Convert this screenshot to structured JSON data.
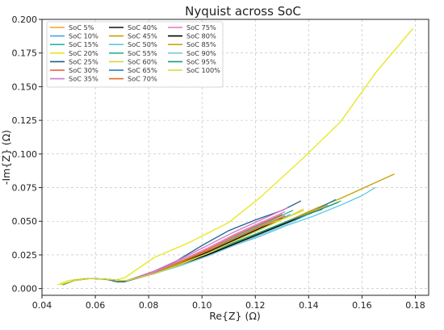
{
  "chart_data": {
    "type": "line",
    "title": "Nyquist across SoC",
    "xlabel": "Re{Z} (Ω)",
    "ylabel": "-Im{Z} (Ω)",
    "xlim": [
      0.04,
      0.185
    ],
    "ylim": [
      -0.005,
      0.2
    ],
    "xticks": [
      "0.04",
      "0.06",
      "0.08",
      "0.10",
      "0.12",
      "0.14",
      "0.16",
      "0.18"
    ],
    "yticks": [
      "0.000",
      "0.025",
      "0.050",
      "0.075",
      "0.100",
      "0.125",
      "0.150",
      "0.175",
      "0.200"
    ],
    "grid": true,
    "legend_position": "top-left",
    "legend_columns": 3,
    "series": [
      {
        "name": "SoC 5%",
        "color": "#f5a623",
        "x": [
          0.048,
          0.052,
          0.058,
          0.064,
          0.069,
          0.072,
          0.082,
          0.092,
          0.102,
          0.112,
          0.122,
          0.132
        ],
        "y": [
          0.003,
          0.006,
          0.0075,
          0.007,
          0.006,
          0.006,
          0.012,
          0.019,
          0.027,
          0.036,
          0.045,
          0.054
        ]
      },
      {
        "name": "SoC 10%",
        "color": "#4aa3df",
        "x": [
          0.048,
          0.052,
          0.058,
          0.064,
          0.069,
          0.072,
          0.082,
          0.092,
          0.102,
          0.112,
          0.122,
          0.133
        ],
        "y": [
          0.003,
          0.006,
          0.0075,
          0.007,
          0.006,
          0.006,
          0.011,
          0.018,
          0.026,
          0.035,
          0.044,
          0.055
        ]
      },
      {
        "name": "SoC 15%",
        "color": "#2bb5a0",
        "x": [
          0.048,
          0.052,
          0.058,
          0.064,
          0.069,
          0.072,
          0.082,
          0.092,
          0.102,
          0.112,
          0.122,
          0.134
        ],
        "y": [
          0.003,
          0.006,
          0.0075,
          0.007,
          0.006,
          0.006,
          0.012,
          0.019,
          0.028,
          0.038,
          0.047,
          0.058
        ]
      },
      {
        "name": "SoC 20%",
        "color": "#e6e619",
        "x": [
          0.046,
          0.05,
          0.056,
          0.062,
          0.067,
          0.071,
          0.082,
          0.095,
          0.11,
          0.122,
          0.138,
          0.152,
          0.165,
          0.179
        ],
        "y": [
          0.003,
          0.006,
          0.0075,
          0.007,
          0.006,
          0.008,
          0.023,
          0.034,
          0.049,
          0.068,
          0.097,
          0.124,
          0.16,
          0.193
        ]
      },
      {
        "name": "SoC 25%",
        "color": "#1f5f8b",
        "x": [
          0.048,
          0.052,
          0.058,
          0.064,
          0.068,
          0.071,
          0.08,
          0.09,
          0.1,
          0.11,
          0.12,
          0.13,
          0.137
        ],
        "y": [
          0.003,
          0.006,
          0.0075,
          0.007,
          0.005,
          0.005,
          0.01,
          0.02,
          0.032,
          0.043,
          0.051,
          0.058,
          0.065
        ]
      },
      {
        "name": "SoC 30%",
        "color": "#e8553a",
        "x": [
          0.048,
          0.052,
          0.058,
          0.064,
          0.069,
          0.072,
          0.082,
          0.092,
          0.102,
          0.112,
          0.122,
          0.13
        ],
        "y": [
          0.003,
          0.006,
          0.0075,
          0.007,
          0.006,
          0.006,
          0.012,
          0.02,
          0.029,
          0.039,
          0.048,
          0.055
        ]
      },
      {
        "name": "SoC 35%",
        "color": "#c77cc7",
        "x": [
          0.048,
          0.052,
          0.058,
          0.064,
          0.069,
          0.072,
          0.082,
          0.092,
          0.102,
          0.112,
          0.122,
          0.132
        ],
        "y": [
          0.003,
          0.006,
          0.0075,
          0.007,
          0.006,
          0.006,
          0.013,
          0.022,
          0.032,
          0.042,
          0.051,
          0.06
        ]
      },
      {
        "name": "SoC 40%",
        "color": "#111111",
        "x": [
          0.048,
          0.052,
          0.058,
          0.064,
          0.069,
          0.072,
          0.082,
          0.092,
          0.102,
          0.112,
          0.122,
          0.13
        ],
        "y": [
          0.003,
          0.006,
          0.0075,
          0.007,
          0.006,
          0.006,
          0.012,
          0.019,
          0.027,
          0.036,
          0.045,
          0.052
        ]
      },
      {
        "name": "SoC 45%",
        "color": "#c9a000",
        "x": [
          0.048,
          0.052,
          0.058,
          0.064,
          0.069,
          0.072,
          0.082,
          0.092,
          0.102,
          0.112,
          0.122,
          0.132,
          0.142,
          0.152,
          0.162,
          0.172
        ],
        "y": [
          0.003,
          0.006,
          0.0075,
          0.007,
          0.006,
          0.006,
          0.012,
          0.019,
          0.026,
          0.034,
          0.042,
          0.05,
          0.059,
          0.067,
          0.076,
          0.085
        ]
      },
      {
        "name": "SoC 50%",
        "color": "#5bc8e6",
        "x": [
          0.048,
          0.052,
          0.058,
          0.064,
          0.069,
          0.072,
          0.082,
          0.092,
          0.102,
          0.112,
          0.122,
          0.132,
          0.142,
          0.152,
          0.16,
          0.165
        ],
        "y": [
          0.003,
          0.006,
          0.0075,
          0.007,
          0.006,
          0.006,
          0.011,
          0.018,
          0.025,
          0.032,
          0.039,
          0.047,
          0.054,
          0.062,
          0.069,
          0.075
        ]
      },
      {
        "name": "SoC 55%",
        "color": "#2fb28a",
        "x": [
          0.048,
          0.052,
          0.058,
          0.064,
          0.069,
          0.072,
          0.082,
          0.092,
          0.102,
          0.112,
          0.122,
          0.132,
          0.142,
          0.152
        ],
        "y": [
          0.003,
          0.006,
          0.0075,
          0.007,
          0.006,
          0.006,
          0.011,
          0.018,
          0.025,
          0.033,
          0.041,
          0.049,
          0.057,
          0.065
        ]
      },
      {
        "name": "SoC 60%",
        "color": "#e0d23a",
        "x": [
          0.048,
          0.052,
          0.058,
          0.064,
          0.069,
          0.072,
          0.082,
          0.092,
          0.102,
          0.112,
          0.122,
          0.132,
          0.138
        ],
        "y": [
          0.003,
          0.006,
          0.0075,
          0.007,
          0.006,
          0.006,
          0.012,
          0.02,
          0.028,
          0.037,
          0.046,
          0.053,
          0.058
        ]
      },
      {
        "name": "SoC 65%",
        "color": "#1f77b4",
        "x": [
          0.048,
          0.052,
          0.058,
          0.064,
          0.069,
          0.072,
          0.082,
          0.092,
          0.102,
          0.112,
          0.122,
          0.132,
          0.142,
          0.15
        ],
        "y": [
          0.003,
          0.006,
          0.0075,
          0.007,
          0.006,
          0.006,
          0.011,
          0.018,
          0.025,
          0.033,
          0.041,
          0.05,
          0.058,
          0.066
        ]
      },
      {
        "name": "SoC 70%",
        "color": "#e36b1e",
        "x": [
          0.048,
          0.052,
          0.058,
          0.064,
          0.069,
          0.072,
          0.082,
          0.092,
          0.102,
          0.112,
          0.122,
          0.131
        ],
        "y": [
          0.003,
          0.006,
          0.0075,
          0.007,
          0.006,
          0.006,
          0.012,
          0.02,
          0.028,
          0.037,
          0.046,
          0.054
        ]
      },
      {
        "name": "SoC 75%",
        "color": "#e377c2",
        "x": [
          0.048,
          0.052,
          0.058,
          0.064,
          0.069,
          0.072,
          0.082,
          0.092,
          0.102,
          0.112,
          0.122,
          0.131
        ],
        "y": [
          0.003,
          0.006,
          0.0075,
          0.007,
          0.006,
          0.006,
          0.012,
          0.021,
          0.03,
          0.04,
          0.049,
          0.057
        ]
      },
      {
        "name": "SoC 80%",
        "color": "#000000",
        "x": [
          0.048,
          0.052,
          0.058,
          0.064,
          0.069,
          0.072,
          0.082,
          0.092,
          0.102,
          0.112,
          0.122,
          0.132,
          0.142,
          0.145
        ],
        "y": [
          0.003,
          0.006,
          0.0075,
          0.007,
          0.006,
          0.006,
          0.011,
          0.018,
          0.025,
          0.033,
          0.041,
          0.049,
          0.057,
          0.059
        ]
      },
      {
        "name": "SoC 85%",
        "color": "#d4a017",
        "x": [
          0.048,
          0.052,
          0.058,
          0.064,
          0.069,
          0.072,
          0.082,
          0.092,
          0.102,
          0.112,
          0.122,
          0.132,
          0.142,
          0.147
        ],
        "y": [
          0.003,
          0.006,
          0.0075,
          0.007,
          0.006,
          0.006,
          0.011,
          0.018,
          0.026,
          0.034,
          0.042,
          0.05,
          0.058,
          0.062
        ]
      },
      {
        "name": "SoC 90%",
        "color": "#7fc6e0",
        "x": [
          0.048,
          0.052,
          0.058,
          0.064,
          0.069,
          0.072,
          0.082,
          0.092,
          0.102,
          0.112,
          0.122,
          0.132,
          0.14
        ],
        "y": [
          0.003,
          0.006,
          0.0075,
          0.007,
          0.006,
          0.006,
          0.011,
          0.017,
          0.024,
          0.032,
          0.04,
          0.048,
          0.055
        ]
      },
      {
        "name": "SoC 95%",
        "color": "#1a9c7a",
        "x": [
          0.048,
          0.052,
          0.058,
          0.064,
          0.069,
          0.072,
          0.082,
          0.092,
          0.102,
          0.112,
          0.122,
          0.132,
          0.142,
          0.151
        ],
        "y": [
          0.003,
          0.006,
          0.0075,
          0.007,
          0.006,
          0.006,
          0.011,
          0.018,
          0.026,
          0.034,
          0.042,
          0.05,
          0.057,
          0.064
        ]
      },
      {
        "name": "SoC 100%",
        "color": "#d9d92a",
        "x": [
          0.047,
          0.052,
          0.058,
          0.064,
          0.069,
          0.072,
          0.082,
          0.092,
          0.102,
          0.112,
          0.122,
          0.132,
          0.138
        ],
        "y": [
          0.003,
          0.006,
          0.0075,
          0.007,
          0.006,
          0.006,
          0.011,
          0.018,
          0.026,
          0.035,
          0.044,
          0.053,
          0.059
        ]
      }
    ]
  }
}
